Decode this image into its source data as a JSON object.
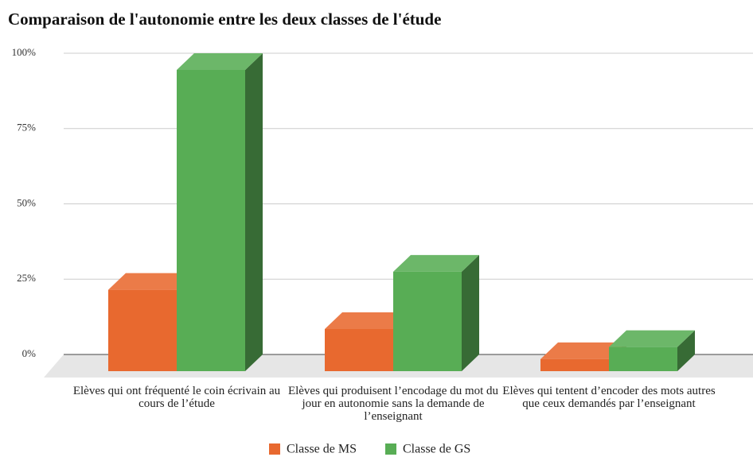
{
  "chart_data": {
    "type": "bar3d",
    "title": "Comparaison de l'autonomie entre les deux classes de l'étude",
    "categories": [
      "Elèves qui ont fréquenté le coin écrivain au cours de l’étude",
      "Elèves qui produisent l’encodage du mot du jour en autonomie sans la demande de l’enseignant",
      "Elèves qui tentent d’encoder des mots autres que ceux demandés par l’enseignant"
    ],
    "series": [
      {
        "name": "Classe de MS",
        "color": "#e8692f",
        "values": [
          27,
          14,
          4
        ]
      },
      {
        "name": "Classe de GS",
        "color": "#58ad55",
        "values": [
          100,
          33,
          8
        ]
      }
    ],
    "ylim": [
      0,
      100
    ],
    "yticks": [
      {
        "value": 0,
        "label": "0%"
      },
      {
        "value": 25,
        "label": "25%"
      },
      {
        "value": 50,
        "label": "50%"
      },
      {
        "value": 75,
        "label": "75%"
      },
      {
        "value": 100,
        "label": "100%"
      }
    ],
    "grid": true,
    "legend": "bottom"
  }
}
